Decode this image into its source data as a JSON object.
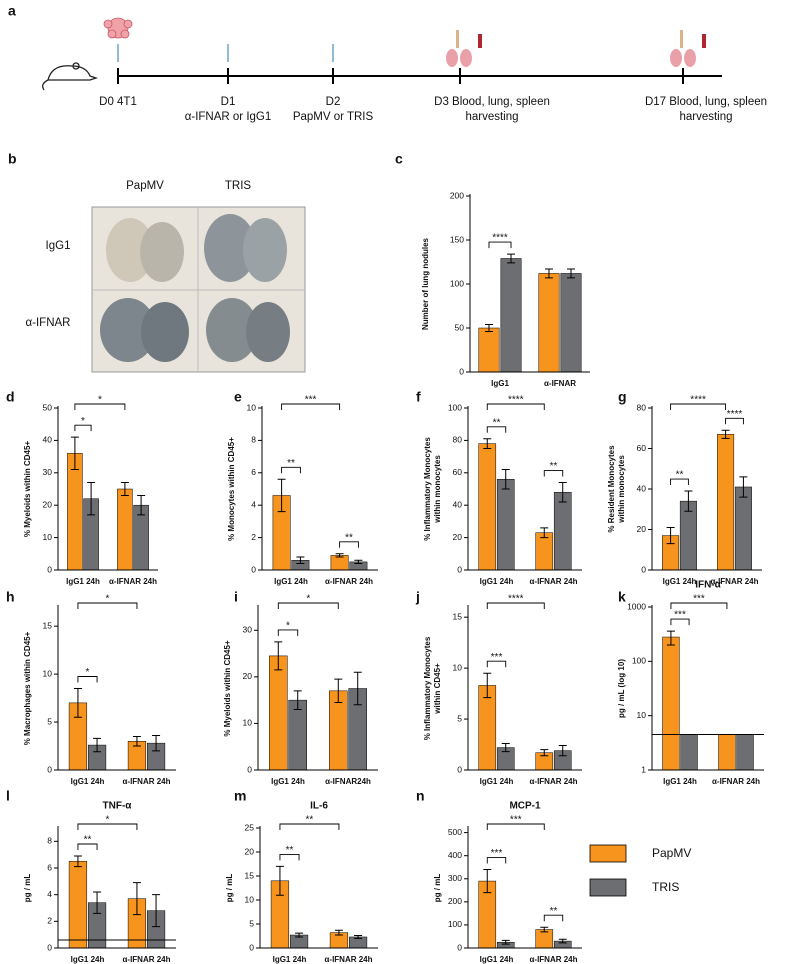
{
  "timeline": {
    "panel": "a",
    "steps": [
      {
        "lines": [
          "D0 4T1"
        ]
      },
      {
        "lines": [
          "D1",
          "α-IFNAR or IgG1"
        ]
      },
      {
        "lines": [
          "D2",
          "PapMV or TRIS"
        ]
      },
      {
        "lines": [
          "D3 Blood, lung, spleen",
          "harvesting"
        ]
      },
      {
        "lines": [
          "D17 Blood, lung, spleen",
          "harvesting"
        ]
      }
    ]
  },
  "lung_photos": {
    "panel": "b",
    "columns": [
      "PapMV",
      "TRIS"
    ],
    "rows": [
      "IgG1",
      "α-IFNAR"
    ]
  },
  "chart_data": [
    {
      "type": "bar",
      "panel": "c",
      "ylabel": [
        "Number of lung nodules"
      ],
      "categories": [
        "IgG1",
        "α-IFNAR"
      ],
      "series": [
        {
          "color": "#f7941d",
          "values": [
            50,
            112
          ],
          "errors": [
            4,
            5
          ]
        },
        {
          "color": "#6d6e71",
          "values": [
            129,
            112
          ],
          "errors": [
            5,
            5
          ]
        }
      ],
      "ylim": [
        0,
        200
      ],
      "yticks": [
        0,
        50,
        100,
        150,
        200
      ],
      "brackets": [
        {
          "label": "****",
          "from": [
            0,
            0
          ],
          "to": [
            0,
            1
          ]
        }
      ]
    },
    {
      "type": "bar",
      "panel": "d",
      "ylabel": [
        "% Myeloids within CD45+"
      ],
      "categories": [
        "IgG1 24h",
        "α-IFNAR 24h"
      ],
      "series": [
        {
          "color": "#f7941d",
          "values": [
            36,
            25
          ],
          "errors": [
            5,
            2
          ]
        },
        {
          "color": "#6d6e71",
          "values": [
            22,
            20
          ],
          "errors": [
            5,
            3
          ]
        }
      ],
      "ylim": [
        0,
        50
      ],
      "yticks": [
        0,
        10,
        20,
        30,
        40,
        50
      ],
      "brackets": [
        {
          "label": "*",
          "from": [
            0,
            0
          ],
          "to": [
            0,
            1
          ]
        },
        {
          "label": "*",
          "from": [
            0,
            0
          ],
          "to": [
            1,
            0
          ]
        }
      ]
    },
    {
      "type": "bar",
      "panel": "e",
      "ylabel": [
        "% Monocytes within CD45+"
      ],
      "categories": [
        "IgG1 24h",
        "α-IFNAR 24h"
      ],
      "series": [
        {
          "color": "#f7941d",
          "values": [
            4.6,
            0.9
          ],
          "errors": [
            1,
            0.1
          ]
        },
        {
          "color": "#6d6e71",
          "values": [
            0.6,
            0.5
          ],
          "errors": [
            0.2,
            0.1
          ]
        }
      ],
      "ylim": [
        0,
        10
      ],
      "yticks": [
        0,
        2,
        4,
        6,
        8,
        10
      ],
      "brackets": [
        {
          "label": "**",
          "from": [
            0,
            0
          ],
          "to": [
            0,
            1
          ]
        },
        {
          "label": "***",
          "from": [
            0,
            0
          ],
          "to": [
            1,
            0
          ]
        },
        {
          "label": "**",
          "from": [
            1,
            0
          ],
          "to": [
            1,
            1
          ]
        }
      ]
    },
    {
      "type": "bar",
      "panel": "f",
      "ylabel": [
        "% Inflammatory Monocytes",
        "within monocytes"
      ],
      "categories": [
        "IgG1 24h",
        "α-IFNAR 24h"
      ],
      "series": [
        {
          "color": "#f7941d",
          "values": [
            78,
            23
          ],
          "errors": [
            3,
            3
          ]
        },
        {
          "color": "#6d6e71",
          "values": [
            56,
            48
          ],
          "errors": [
            6,
            6
          ]
        }
      ],
      "ylim": [
        0,
        100
      ],
      "yticks": [
        0,
        20,
        40,
        60,
        80,
        100
      ],
      "brackets": [
        {
          "label": "**",
          "from": [
            0,
            0
          ],
          "to": [
            0,
            1
          ]
        },
        {
          "label": "****",
          "from": [
            0,
            0
          ],
          "to": [
            1,
            0
          ]
        },
        {
          "label": "**",
          "from": [
            1,
            0
          ],
          "to": [
            1,
            1
          ]
        }
      ]
    },
    {
      "type": "bar",
      "panel": "g",
      "ylabel": [
        "% Resident Monocytes",
        "within monocytes"
      ],
      "categories": [
        "IgG1 24h",
        "α-IFNAR 24h"
      ],
      "series": [
        {
          "color": "#f7941d",
          "values": [
            17,
            67
          ],
          "errors": [
            4,
            2
          ]
        },
        {
          "color": "#6d6e71",
          "values": [
            34,
            41
          ],
          "errors": [
            5,
            5
          ]
        }
      ],
      "ylim": [
        0,
        80
      ],
      "yticks": [
        0,
        20,
        40,
        60,
        80
      ],
      "brackets": [
        {
          "label": "**",
          "from": [
            0,
            0
          ],
          "to": [
            0,
            1
          ]
        },
        {
          "label": "****",
          "from": [
            0,
            0
          ],
          "to": [
            1,
            0
          ]
        },
        {
          "label": "****",
          "from": [
            1,
            0
          ],
          "to": [
            1,
            1
          ]
        }
      ]
    },
    {
      "type": "bar",
      "panel": "h",
      "ylabel": [
        "% Macrophages within CD45+"
      ],
      "categories": [
        "IgG1 24h",
        "α-IFNAR 24h"
      ],
      "series": [
        {
          "color": "#f7941d",
          "values": [
            7,
            3
          ],
          "errors": [
            1.5,
            0.5
          ]
        },
        {
          "color": "#6d6e71",
          "values": [
            2.6,
            2.8
          ],
          "errors": [
            0.7,
            0.8
          ]
        }
      ],
      "ylim": [
        0,
        17
      ],
      "yticks": [
        0,
        5,
        10,
        15
      ],
      "brackets": [
        {
          "label": "*",
          "from": [
            0,
            0
          ],
          "to": [
            0,
            1
          ]
        },
        {
          "label": "*",
          "from": [
            0,
            0
          ],
          "to": [
            1,
            0
          ]
        }
      ]
    },
    {
      "type": "bar",
      "panel": "i",
      "ylabel": [
        "% Myeloids within CD45+"
      ],
      "categories": [
        "IgG1 24h",
        "α-IFNAR24h"
      ],
      "series": [
        {
          "color": "#f7941d",
          "values": [
            24.5,
            17
          ],
          "errors": [
            3,
            2.5
          ]
        },
        {
          "color": "#6d6e71",
          "values": [
            15,
            17.5
          ],
          "errors": [
            2,
            3.5
          ]
        }
      ],
      "ylim": [
        0,
        35
      ],
      "yticks": [
        0,
        10,
        20,
        30
      ],
      "brackets": [
        {
          "label": "*",
          "from": [
            0,
            0
          ],
          "to": [
            0,
            1
          ]
        },
        {
          "label": "*",
          "from": [
            0,
            0
          ],
          "to": [
            1,
            0
          ]
        }
      ]
    },
    {
      "type": "bar",
      "panel": "j",
      "ylabel": [
        "% Inflammatory Monocytes",
        "within CD45+"
      ],
      "categories": [
        "IgG1 24h",
        "α-IFNAR 24h"
      ],
      "series": [
        {
          "color": "#f7941d",
          "values": [
            8.3,
            1.7
          ],
          "errors": [
            1.2,
            0.3
          ]
        },
        {
          "color": "#6d6e71",
          "values": [
            2.2,
            1.9
          ],
          "errors": [
            0.4,
            0.5
          ]
        }
      ],
      "ylim": [
        0,
        16
      ],
      "yticks": [
        0,
        5,
        10,
        15
      ],
      "brackets": [
        {
          "label": "***",
          "from": [
            0,
            0
          ],
          "to": [
            0,
            1
          ]
        },
        {
          "label": "****",
          "from": [
            0,
            0
          ],
          "to": [
            1,
            0
          ]
        }
      ]
    },
    {
      "type": "bar",
      "panel": "k",
      "title": "IFN-α",
      "ylabel": [
        "pg / mL (log 10)"
      ],
      "categories": [
        "IgG1 24h",
        "α-IFNAR 24h"
      ],
      "log": true,
      "series": [
        {
          "color": "#f7941d",
          "values": [
            280,
            4.5
          ],
          "errors": [
            80,
            0
          ]
        },
        {
          "color": "#6d6e71",
          "values": [
            4.5,
            4.5
          ],
          "errors": [
            0,
            0
          ]
        }
      ],
      "ylim": [
        1,
        1000
      ],
      "yticks": [
        1,
        10,
        100,
        1000
      ],
      "threshold": 4.5,
      "brackets": [
        {
          "label": "***",
          "from": [
            0,
            0
          ],
          "to": [
            0,
            1
          ]
        },
        {
          "label": "***",
          "from": [
            0,
            0
          ],
          "to": [
            1,
            0
          ]
        }
      ]
    },
    {
      "type": "bar",
      "panel": "l",
      "title": "TNF-α",
      "ylabel": [
        "pg / mL"
      ],
      "categories": [
        "IgG1 24h",
        "α-IFNAR 24h"
      ],
      "series": [
        {
          "color": "#f7941d",
          "values": [
            6.5,
            3.7
          ],
          "errors": [
            0.4,
            1.2
          ]
        },
        {
          "color": "#6d6e71",
          "values": [
            3.4,
            2.8
          ],
          "errors": [
            0.8,
            1.2
          ]
        }
      ],
      "ylim": [
        0,
        9
      ],
      "yticks": [
        0,
        2,
        4,
        6,
        8
      ],
      "threshold": 0.6,
      "brackets": [
        {
          "label": "**",
          "from": [
            0,
            0
          ],
          "to": [
            0,
            1
          ]
        },
        {
          "label": "*",
          "from": [
            0,
            0
          ],
          "to": [
            1,
            0
          ]
        }
      ]
    },
    {
      "type": "bar",
      "panel": "m",
      "title": "IL-6",
      "ylabel": [
        "pg / mL"
      ],
      "categories": [
        "IgG1 24h",
        "α-IFNAR 24h"
      ],
      "series": [
        {
          "color": "#f7941d",
          "values": [
            14,
            3.2
          ],
          "errors": [
            3,
            0.5
          ]
        },
        {
          "color": "#6d6e71",
          "values": [
            2.7,
            2.3
          ],
          "errors": [
            0.4,
            0.3
          ]
        }
      ],
      "ylim": [
        0,
        25
      ],
      "yticks": [
        0,
        5,
        10,
        15,
        20,
        25
      ],
      "brackets": [
        {
          "label": "**",
          "from": [
            0,
            0
          ],
          "to": [
            0,
            1
          ]
        },
        {
          "label": "**",
          "from": [
            0,
            0
          ],
          "to": [
            1,
            0
          ]
        }
      ]
    },
    {
      "type": "bar",
      "panel": "n",
      "title": "MCP-1",
      "ylabel": [
        "pg / mL"
      ],
      "categories": [
        "IgG1 24h",
        "α-IFNAR 24h"
      ],
      "series": [
        {
          "name": "PapMV",
          "color": "#f7941d",
          "values": [
            290,
            80
          ],
          "errors": [
            50,
            10
          ]
        },
        {
          "name": "TRIS",
          "color": "#6d6e71",
          "values": [
            25,
            30
          ],
          "errors": [
            8,
            8
          ]
        }
      ],
      "ylim": [
        0,
        520
      ],
      "yticks": [
        0,
        100,
        200,
        300,
        400,
        500
      ],
      "brackets": [
        {
          "label": "***",
          "from": [
            0,
            0
          ],
          "to": [
            0,
            1
          ]
        },
        {
          "label": "***",
          "from": [
            0,
            0
          ],
          "to": [
            1,
            0
          ]
        },
        {
          "label": "**",
          "from": [
            1,
            0
          ],
          "to": [
            1,
            1
          ]
        }
      ]
    }
  ]
}
